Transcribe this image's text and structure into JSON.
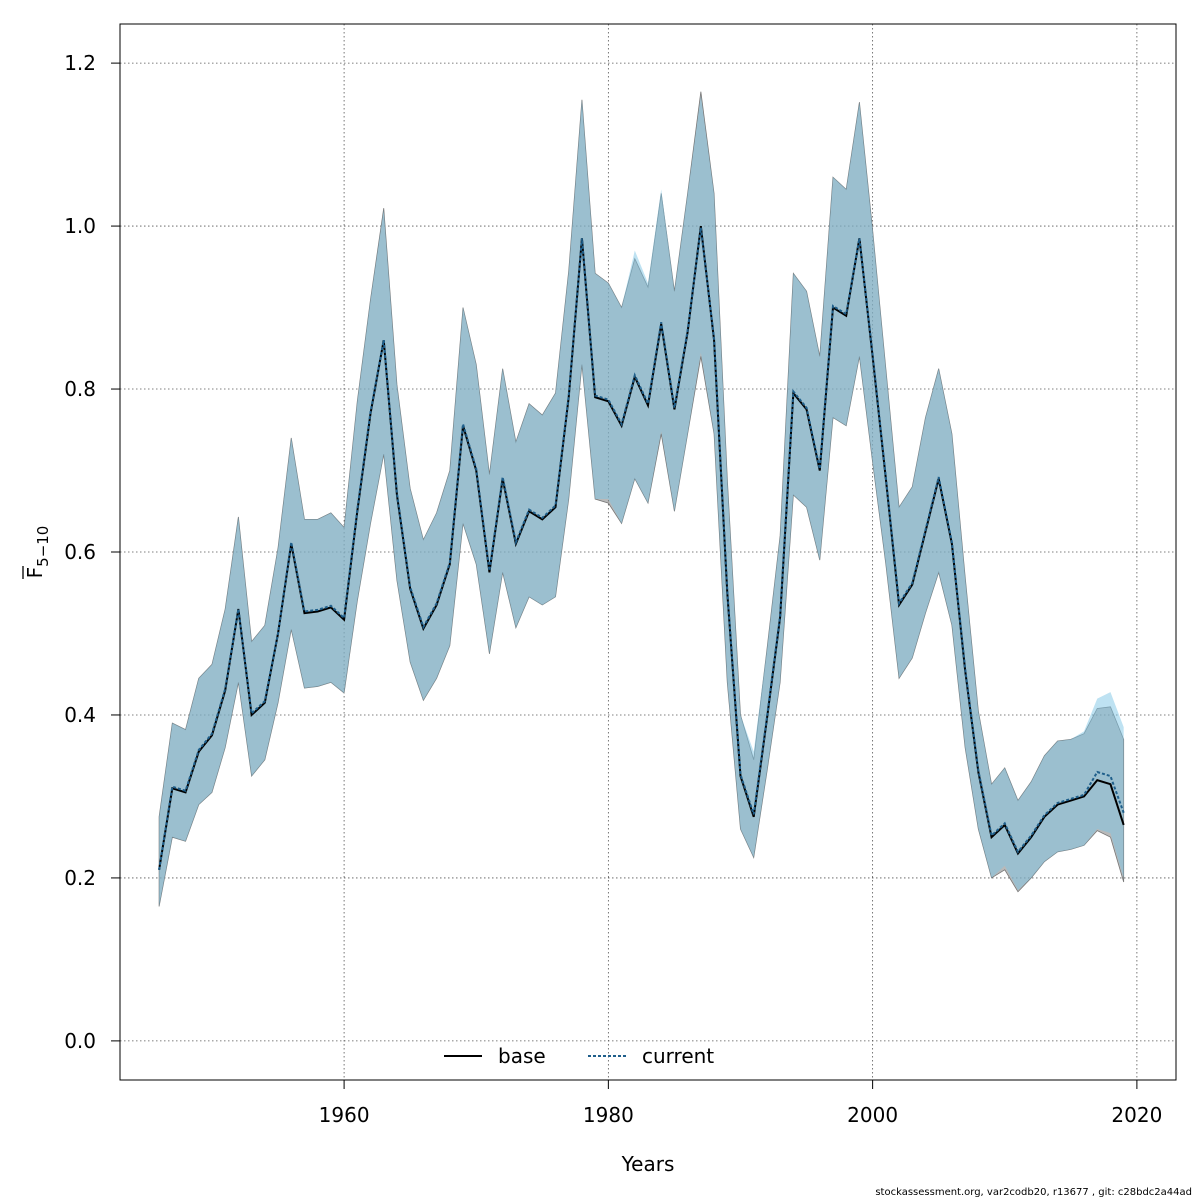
{
  "chart_data": {
    "type": "line",
    "xlabel": "Years",
    "ylabel_main": "F",
    "ylabel_sub": "5−10",
    "xlim": [
      1946,
      2020
    ],
    "ylim": [
      0.0,
      1.2
    ],
    "x_ticks": [
      1960,
      1980,
      2000,
      2020
    ],
    "y_ticks": [
      0.0,
      0.2,
      0.4,
      0.6,
      0.8,
      1.0,
      1.2
    ],
    "x_tick_labels": [
      "1960",
      "1980",
      "2000",
      "2020"
    ],
    "y_tick_labels": [
      "0.0",
      "0.2",
      "0.4",
      "0.6",
      "0.8",
      "1.0",
      "1.2"
    ],
    "grid": true,
    "legend_position": "bottom-center",
    "x": [
      1946,
      1947,
      1948,
      1949,
      1950,
      1951,
      1952,
      1953,
      1954,
      1955,
      1956,
      1957,
      1958,
      1959,
      1960,
      1961,
      1962,
      1963,
      1964,
      1965,
      1966,
      1967,
      1968,
      1969,
      1970,
      1971,
      1972,
      1973,
      1974,
      1975,
      1976,
      1977,
      1978,
      1979,
      1980,
      1981,
      1982,
      1983,
      1984,
      1985,
      1986,
      1987,
      1988,
      1989,
      1990,
      1991,
      1992,
      1993,
      1994,
      1995,
      1996,
      1997,
      1998,
      1999,
      2000,
      2001,
      2002,
      2003,
      2004,
      2005,
      2006,
      2007,
      2008,
      2009,
      2010,
      2011,
      2012,
      2013,
      2014,
      2015,
      2016,
      2017,
      2018,
      2019
    ],
    "series": [
      {
        "name": "base",
        "color": "#000000",
        "band_color": "#7f7f7f",
        "values": [
          0.21,
          0.31,
          0.305,
          0.355,
          0.375,
          0.43,
          0.53,
          0.4,
          0.415,
          0.5,
          0.61,
          0.525,
          0.527,
          0.532,
          0.517,
          0.65,
          0.77,
          0.86,
          0.67,
          0.555,
          0.506,
          0.535,
          0.585,
          0.755,
          0.7,
          0.575,
          0.69,
          0.61,
          0.65,
          0.64,
          0.655,
          0.79,
          0.985,
          0.79,
          0.785,
          0.755,
          0.815,
          0.78,
          0.88,
          0.775,
          0.87,
          1.0,
          0.86,
          0.55,
          0.325,
          0.275,
          0.395,
          0.52,
          0.795,
          0.775,
          0.7,
          0.9,
          0.89,
          0.985,
          0.84,
          0.69,
          0.535,
          0.56,
          0.625,
          0.69,
          0.61,
          0.455,
          0.33,
          0.25,
          0.265,
          0.23,
          0.25,
          0.275,
          0.29,
          0.295,
          0.3,
          0.32,
          0.315,
          0.265
        ],
        "lower": [
          0.165,
          0.25,
          0.245,
          0.29,
          0.305,
          0.36,
          0.44,
          0.325,
          0.345,
          0.415,
          0.505,
          0.433,
          0.435,
          0.44,
          0.427,
          0.54,
          0.635,
          0.72,
          0.565,
          0.465,
          0.418,
          0.445,
          0.485,
          0.635,
          0.585,
          0.475,
          0.575,
          0.507,
          0.545,
          0.535,
          0.545,
          0.665,
          0.83,
          0.665,
          0.66,
          0.635,
          0.69,
          0.66,
          0.745,
          0.65,
          0.745,
          0.84,
          0.745,
          0.44,
          0.26,
          0.225,
          0.33,
          0.44,
          0.67,
          0.655,
          0.59,
          0.765,
          0.755,
          0.84,
          0.71,
          0.585,
          0.445,
          0.47,
          0.525,
          0.575,
          0.51,
          0.36,
          0.26,
          0.2,
          0.21,
          0.183,
          0.2,
          0.22,
          0.232,
          0.235,
          0.24,
          0.258,
          0.25,
          0.195
        ],
        "upper": [
          0.275,
          0.39,
          0.382,
          0.445,
          0.462,
          0.53,
          0.643,
          0.49,
          0.51,
          0.605,
          0.74,
          0.64,
          0.64,
          0.648,
          0.63,
          0.785,
          0.91,
          1.022,
          0.805,
          0.678,
          0.615,
          0.648,
          0.7,
          0.9,
          0.83,
          0.695,
          0.825,
          0.735,
          0.782,
          0.768,
          0.795,
          0.945,
          1.155,
          0.942,
          0.93,
          0.9,
          0.96,
          0.925,
          1.04,
          0.92,
          1.04,
          1.165,
          1.04,
          0.69,
          0.4,
          0.345,
          0.48,
          0.62,
          0.942,
          0.92,
          0.84,
          1.06,
          1.045,
          1.152,
          0.995,
          0.825,
          0.655,
          0.68,
          0.765,
          0.825,
          0.745,
          0.57,
          0.405,
          0.315,
          0.335,
          0.295,
          0.318,
          0.35,
          0.368,
          0.37,
          0.377,
          0.408,
          0.41,
          0.37
        ]
      },
      {
        "name": "current",
        "color": "#1f5f8b",
        "band_color": "#7ec6e6",
        "values": [
          0.21,
          0.312,
          0.307,
          0.357,
          0.377,
          0.432,
          0.53,
          0.402,
          0.417,
          0.5,
          0.612,
          0.527,
          0.529,
          0.534,
          0.519,
          0.652,
          0.772,
          0.86,
          0.672,
          0.557,
          0.508,
          0.537,
          0.587,
          0.757,
          0.702,
          0.577,
          0.692,
          0.612,
          0.652,
          0.642,
          0.657,
          0.792,
          0.985,
          0.792,
          0.787,
          0.757,
          0.817,
          0.782,
          0.882,
          0.777,
          0.872,
          0.998,
          0.862,
          0.552,
          0.327,
          0.278,
          0.397,
          0.522,
          0.797,
          0.777,
          0.702,
          0.902,
          0.892,
          0.985,
          0.842,
          0.692,
          0.537,
          0.562,
          0.627,
          0.692,
          0.612,
          0.457,
          0.332,
          0.252,
          0.267,
          0.232,
          0.252,
          0.277,
          0.292,
          0.297,
          0.302,
          0.33,
          0.325,
          0.28
        ],
        "lower": [
          0.165,
          0.25,
          0.245,
          0.29,
          0.305,
          0.36,
          0.44,
          0.325,
          0.345,
          0.415,
          0.505,
          0.433,
          0.435,
          0.44,
          0.427,
          0.54,
          0.635,
          0.72,
          0.565,
          0.465,
          0.418,
          0.445,
          0.485,
          0.635,
          0.585,
          0.475,
          0.575,
          0.507,
          0.545,
          0.535,
          0.545,
          0.665,
          0.83,
          0.665,
          0.665,
          0.635,
          0.69,
          0.66,
          0.748,
          0.65,
          0.745,
          0.845,
          0.745,
          0.44,
          0.26,
          0.225,
          0.33,
          0.44,
          0.67,
          0.655,
          0.59,
          0.765,
          0.755,
          0.84,
          0.71,
          0.585,
          0.445,
          0.47,
          0.525,
          0.575,
          0.51,
          0.36,
          0.26,
          0.2,
          0.215,
          0.185,
          0.2,
          0.22,
          0.232,
          0.235,
          0.24,
          0.26,
          0.255,
          0.2
        ],
        "upper": [
          0.275,
          0.39,
          0.382,
          0.445,
          0.462,
          0.53,
          0.643,
          0.49,
          0.51,
          0.605,
          0.74,
          0.64,
          0.64,
          0.648,
          0.63,
          0.785,
          0.91,
          1.02,
          0.805,
          0.678,
          0.615,
          0.648,
          0.7,
          0.9,
          0.83,
          0.695,
          0.825,
          0.735,
          0.782,
          0.768,
          0.795,
          0.945,
          1.155,
          0.942,
          0.93,
          0.9,
          0.97,
          0.93,
          1.045,
          0.92,
          1.04,
          1.16,
          1.04,
          0.69,
          0.4,
          0.355,
          0.48,
          0.62,
          0.942,
          0.92,
          0.84,
          1.06,
          1.045,
          1.152,
          0.995,
          0.825,
          0.655,
          0.68,
          0.765,
          0.825,
          0.745,
          0.57,
          0.405,
          0.315,
          0.335,
          0.295,
          0.318,
          0.35,
          0.368,
          0.37,
          0.38,
          0.42,
          0.428,
          0.385
        ]
      }
    ]
  },
  "legend": {
    "base_label": "base",
    "current_label": "current"
  },
  "footer": {
    "text": "stockassessment.org, var2codb20, r13677 , git: c28bdc2a44ad"
  }
}
